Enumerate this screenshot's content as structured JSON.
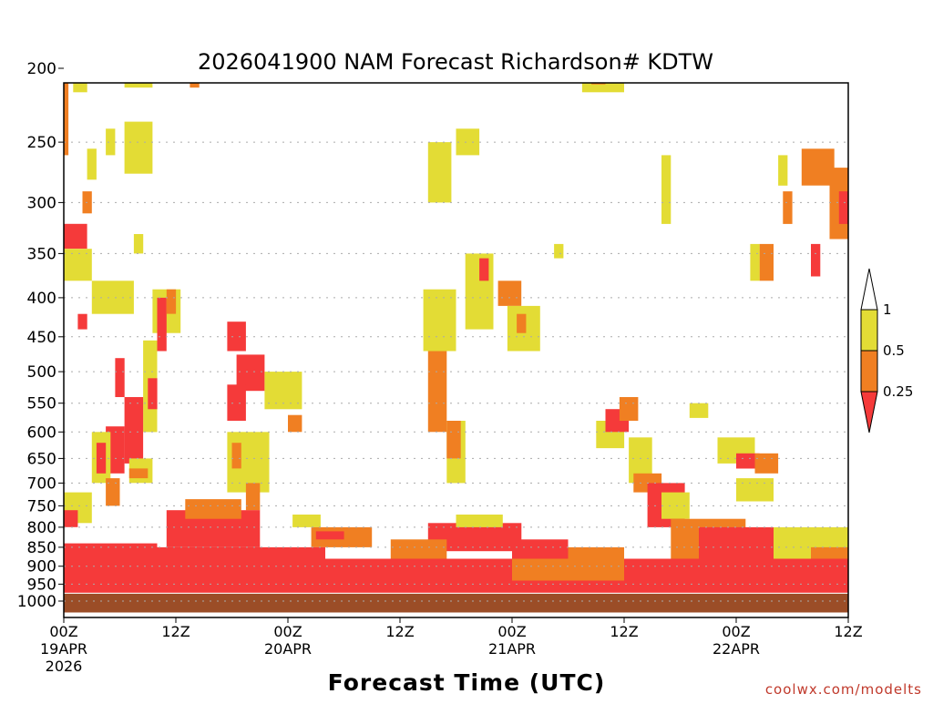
{
  "chart_data": {
    "type": "heatmap",
    "title": "2026041900 NAM Forecast Richardson# KDTW",
    "xlabel": "Forecast Time (UTC)",
    "ylabel": "",
    "credit": "coolwx.com/modelts",
    "x_unit": "forecast hours",
    "xlim": [
      0,
      84
    ],
    "ylim": [
      200,
      1000
    ],
    "y_scale": "log-pressure",
    "y_ticks": [
      200,
      250,
      300,
      350,
      400,
      450,
      500,
      550,
      600,
      650,
      700,
      750,
      800,
      850,
      900,
      950,
      1000
    ],
    "y_tick_labels": [
      "200",
      "250",
      "300",
      "350",
      "400",
      "450",
      "500",
      "550",
      "600",
      "650",
      "700",
      "750",
      "800",
      "850",
      "900",
      "950",
      "1000"
    ],
    "x_ticks": [
      {
        "hour": 0,
        "line1": "00Z",
        "line2": "19APR",
        "line3": "2026"
      },
      {
        "hour": 12,
        "line1": "12Z",
        "line2": "",
        "line3": ""
      },
      {
        "hour": 24,
        "line1": "00Z",
        "line2": "20APR",
        "line3": ""
      },
      {
        "hour": 36,
        "line1": "12Z",
        "line2": "",
        "line3": ""
      },
      {
        "hour": 48,
        "line1": "00Z",
        "line2": "21APR",
        "line3": ""
      },
      {
        "hour": 60,
        "line1": "12Z",
        "line2": "",
        "line3": ""
      },
      {
        "hour": 72,
        "line1": "00Z",
        "line2": "22APR",
        "line3": ""
      },
      {
        "hour": 84,
        "line1": "12Z",
        "line2": "",
        "line3": ""
      }
    ],
    "legend": {
      "position": "right",
      "labels": [
        "1",
        "0.5",
        "0.25"
      ],
      "bins": [
        {
          "range": "0.5-1",
          "color": "#e3dc35"
        },
        {
          "range": "0.25-0.5",
          "color": "#f07f22"
        },
        {
          "range": "<0.25",
          "color": "#f53a3a"
        }
      ],
      "upper_arrow_color": "#ffffff"
    },
    "colors": {
      "low": "#f53a3a",
      "mid": "#f07f22",
      "high": "#e3dc35",
      "ground": "#9b4d27"
    },
    "cells": [
      {
        "h0": 0,
        "h1": 2.5,
        "p0": 320,
        "p1": 345,
        "cls": "low"
      },
      {
        "h0": 0,
        "h1": 0.5,
        "p0": 205,
        "p1": 260,
        "cls": "mid"
      },
      {
        "h0": 1,
        "h1": 2.5,
        "p0": 200,
        "p1": 215,
        "cls": "high"
      },
      {
        "h0": 6.5,
        "h1": 9.5,
        "p0": 200,
        "p1": 212,
        "cls": "high"
      },
      {
        "h0": 13.5,
        "h1": 14.5,
        "p0": 200,
        "p1": 212,
        "cls": "mid"
      },
      {
        "h0": 0,
        "h1": 3,
        "p0": 345,
        "p1": 380,
        "cls": "high"
      },
      {
        "h0": 2,
        "h1": 3,
        "p0": 290,
        "p1": 310,
        "cls": "mid"
      },
      {
        "h0": 2.5,
        "h1": 3.5,
        "p0": 255,
        "p1": 280,
        "cls": "high"
      },
      {
        "h0": 4.5,
        "h1": 5.5,
        "p0": 240,
        "p1": 260,
        "cls": "high"
      },
      {
        "h0": 6.5,
        "h1": 9.5,
        "p0": 235,
        "p1": 275,
        "cls": "high"
      },
      {
        "h0": 7.5,
        "h1": 8.5,
        "p0": 330,
        "p1": 350,
        "cls": "high"
      },
      {
        "h0": 3,
        "h1": 7.5,
        "p0": 380,
        "p1": 420,
        "cls": "high"
      },
      {
        "h0": 1.5,
        "h1": 2.5,
        "p0": 420,
        "p1": 440,
        "cls": "low"
      },
      {
        "h0": 9.5,
        "h1": 12.5,
        "p0": 390,
        "p1": 445,
        "cls": "high"
      },
      {
        "h0": 10,
        "h1": 11,
        "p0": 400,
        "p1": 470,
        "cls": "low"
      },
      {
        "h0": 11,
        "h1": 12,
        "p0": 390,
        "p1": 420,
        "cls": "mid"
      },
      {
        "h0": 8.5,
        "h1": 10,
        "p0": 455,
        "p1": 600,
        "cls": "high"
      },
      {
        "h0": 9,
        "h1": 10,
        "p0": 510,
        "p1": 560,
        "cls": "low"
      },
      {
        "h0": 5.5,
        "h1": 6.5,
        "p0": 480,
        "p1": 540,
        "cls": "low"
      },
      {
        "h0": 6.5,
        "h1": 8.5,
        "p0": 540,
        "p1": 660,
        "cls": "low"
      },
      {
        "h0": 4.5,
        "h1": 6.5,
        "p0": 590,
        "p1": 680,
        "cls": "low"
      },
      {
        "h0": 3,
        "h1": 5,
        "p0": 600,
        "p1": 700,
        "cls": "high"
      },
      {
        "h0": 3.5,
        "h1": 4.5,
        "p0": 620,
        "p1": 680,
        "cls": "low"
      },
      {
        "h0": 7,
        "h1": 9.5,
        "p0": 650,
        "p1": 700,
        "cls": "high"
      },
      {
        "h0": 7,
        "h1": 9,
        "p0": 670,
        "p1": 690,
        "cls": "mid"
      },
      {
        "h0": 4.5,
        "h1": 6,
        "p0": 690,
        "p1": 750,
        "cls": "mid"
      },
      {
        "h0": 0,
        "h1": 3,
        "p0": 720,
        "p1": 790,
        "cls": "high"
      },
      {
        "h0": 0,
        "h1": 1.5,
        "p0": 760,
        "p1": 800,
        "cls": "low"
      },
      {
        "h0": 17.5,
        "h1": 19.5,
        "p0": 430,
        "p1": 470,
        "cls": "low"
      },
      {
        "h0": 18.5,
        "h1": 21.5,
        "p0": 475,
        "p1": 530,
        "cls": "low"
      },
      {
        "h0": 17.5,
        "h1": 19.5,
        "p0": 520,
        "p1": 580,
        "cls": "low"
      },
      {
        "h0": 21.5,
        "h1": 25.5,
        "p0": 500,
        "p1": 560,
        "cls": "high"
      },
      {
        "h0": 24,
        "h1": 25.5,
        "p0": 570,
        "p1": 600,
        "cls": "mid"
      },
      {
        "h0": 17.5,
        "h1": 22,
        "p0": 600,
        "p1": 720,
        "cls": "high"
      },
      {
        "h0": 18,
        "h1": 19,
        "p0": 620,
        "p1": 670,
        "cls": "mid"
      },
      {
        "h0": 19.5,
        "h1": 21,
        "p0": 700,
        "p1": 760,
        "cls": "mid"
      },
      {
        "h0": 11,
        "h1": 21,
        "p0": 760,
        "p1": 850,
        "cls": "low"
      },
      {
        "h0": 13,
        "h1": 19,
        "p0": 735,
        "p1": 780,
        "cls": "mid"
      },
      {
        "h0": 24.5,
        "h1": 27.5,
        "p0": 770,
        "p1": 800,
        "cls": "high"
      },
      {
        "h0": 26.5,
        "h1": 33,
        "p0": 800,
        "p1": 850,
        "cls": "mid"
      },
      {
        "h0": 27,
        "h1": 30,
        "p0": 810,
        "p1": 830,
        "cls": "low"
      },
      {
        "h0": 39,
        "h1": 41,
        "p0": 440,
        "p1": 600,
        "cls": "mid"
      },
      {
        "h0": 38.5,
        "h1": 42,
        "p0": 390,
        "p1": 470,
        "cls": "high"
      },
      {
        "h0": 41,
        "h1": 43,
        "p0": 580,
        "p1": 700,
        "cls": "high"
      },
      {
        "h0": 41,
        "h1": 42.5,
        "p0": 580,
        "p1": 650,
        "cls": "mid"
      },
      {
        "h0": 39.5,
        "h1": 41,
        "p0": 270,
        "p1": 290,
        "cls": "mid"
      },
      {
        "h0": 39,
        "h1": 41.5,
        "p0": 250,
        "p1": 300,
        "cls": "high"
      },
      {
        "h0": 42,
        "h1": 44.5,
        "p0": 240,
        "p1": 260,
        "cls": "high"
      },
      {
        "h0": 43,
        "h1": 46,
        "p0": 350,
        "p1": 440,
        "cls": "high"
      },
      {
        "h0": 44.5,
        "h1": 45.5,
        "p0": 355,
        "p1": 380,
        "cls": "low"
      },
      {
        "h0": 46.5,
        "h1": 49,
        "p0": 380,
        "p1": 410,
        "cls": "mid"
      },
      {
        "h0": 47.5,
        "h1": 51,
        "p0": 410,
        "p1": 470,
        "cls": "high"
      },
      {
        "h0": 48.5,
        "h1": 49.5,
        "p0": 420,
        "p1": 445,
        "cls": "mid"
      },
      {
        "h0": 52.5,
        "h1": 53.5,
        "p0": 340,
        "p1": 355,
        "cls": "high"
      },
      {
        "h0": 39,
        "h1": 49,
        "p0": 790,
        "p1": 860,
        "cls": "low"
      },
      {
        "h0": 42,
        "h1": 47,
        "p0": 770,
        "p1": 800,
        "cls": "high"
      },
      {
        "h0": 35,
        "h1": 41,
        "p0": 830,
        "p1": 880,
        "cls": "mid"
      },
      {
        "h0": 48,
        "h1": 54,
        "p0": 830,
        "p1": 880,
        "cls": "low"
      },
      {
        "h0": 54,
        "h1": 60,
        "p0": 850,
        "p1": 920,
        "cls": "mid"
      },
      {
        "h0": 55.5,
        "h1": 60,
        "p0": 200,
        "p1": 215,
        "cls": "high"
      },
      {
        "h0": 56.5,
        "h1": 58,
        "p0": 200,
        "p1": 210,
        "cls": "mid"
      },
      {
        "h0": 57,
        "h1": 60,
        "p0": 580,
        "p1": 630,
        "cls": "high"
      },
      {
        "h0": 58,
        "h1": 60.5,
        "p0": 560,
        "p1": 600,
        "cls": "low"
      },
      {
        "h0": 59.5,
        "h1": 61.5,
        "p0": 540,
        "p1": 580,
        "cls": "mid"
      },
      {
        "h0": 60.5,
        "h1": 63,
        "p0": 610,
        "p1": 700,
        "cls": "high"
      },
      {
        "h0": 61,
        "h1": 64,
        "p0": 680,
        "p1": 720,
        "cls": "mid"
      },
      {
        "h0": 62.5,
        "h1": 66.5,
        "p0": 700,
        "p1": 800,
        "cls": "low"
      },
      {
        "h0": 64,
        "h1": 67,
        "p0": 720,
        "p1": 780,
        "cls": "high"
      },
      {
        "h0": 67,
        "h1": 69,
        "p0": 550,
        "p1": 575,
        "cls": "high"
      },
      {
        "h0": 70,
        "h1": 74,
        "p0": 610,
        "p1": 660,
        "cls": "high"
      },
      {
        "h0": 72,
        "h1": 74.5,
        "p0": 640,
        "p1": 670,
        "cls": "low"
      },
      {
        "h0": 74,
        "h1": 76.5,
        "p0": 640,
        "p1": 680,
        "cls": "mid"
      },
      {
        "h0": 72,
        "h1": 76,
        "p0": 690,
        "p1": 740,
        "cls": "high"
      },
      {
        "h0": 74.5,
        "h1": 76,
        "p0": 340,
        "p1": 380,
        "cls": "mid"
      },
      {
        "h0": 73.5,
        "h1": 74.5,
        "p0": 340,
        "p1": 380,
        "cls": "high"
      },
      {
        "h0": 80,
        "h1": 81,
        "p0": 340,
        "p1": 375,
        "cls": "low"
      },
      {
        "h0": 79,
        "h1": 82.5,
        "p0": 255,
        "p1": 285,
        "cls": "mid"
      },
      {
        "h0": 82,
        "h1": 84,
        "p0": 270,
        "p1": 335,
        "cls": "mid"
      },
      {
        "h0": 83,
        "h1": 84,
        "p0": 290,
        "p1": 320,
        "cls": "low"
      },
      {
        "h0": 77,
        "h1": 78,
        "p0": 290,
        "p1": 320,
        "cls": "mid"
      },
      {
        "h0": 64,
        "h1": 65,
        "p0": 260,
        "p1": 320,
        "cls": "high"
      },
      {
        "h0": 76.5,
        "h1": 77.5,
        "p0": 260,
        "p1": 285,
        "cls": "high"
      },
      {
        "h0": 65,
        "h1": 73,
        "p0": 780,
        "p1": 880,
        "cls": "mid"
      },
      {
        "h0": 68,
        "h1": 76,
        "p0": 800,
        "p1": 920,
        "cls": "low"
      },
      {
        "h0": 76,
        "h1": 84,
        "p0": 800,
        "p1": 880,
        "cls": "high"
      },
      {
        "h0": 80,
        "h1": 84,
        "p0": 850,
        "p1": 880,
        "cls": "mid"
      },
      {
        "h0": 0,
        "h1": 84,
        "p0": 880,
        "p1": 975,
        "cls": "low"
      },
      {
        "h0": 0,
        "h1": 10,
        "p0": 840,
        "p1": 900,
        "cls": "low"
      },
      {
        "h0": 10,
        "h1": 28,
        "p0": 850,
        "p1": 930,
        "cls": "low"
      },
      {
        "h0": 48,
        "h1": 60,
        "p0": 880,
        "p1": 940,
        "cls": "mid"
      },
      {
        "h0": 60,
        "h1": 84,
        "p0": 920,
        "p1": 960,
        "cls": "low"
      },
      {
        "h0": 0,
        "h1": 84,
        "p0": 978,
        "p1": 1035,
        "cls": "ground"
      }
    ]
  }
}
